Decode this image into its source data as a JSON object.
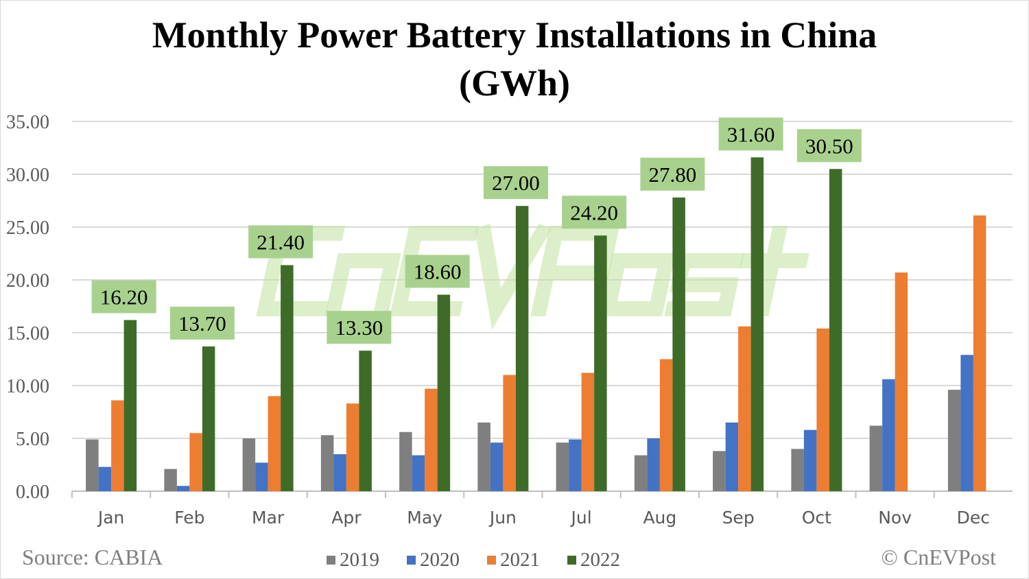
{
  "chart_data": {
    "type": "bar",
    "title": "Monthly Power Battery Installations in China",
    "subtitle": "(GWh)",
    "categories": [
      "Jan",
      "Feb",
      "Mar",
      "Apr",
      "May",
      "Jun",
      "Jul",
      "Aug",
      "Sep",
      "Oct",
      "Nov",
      "Dec"
    ],
    "series": [
      {
        "name": "2019",
        "color": "#7f7f7f",
        "values": [
          4.9,
          2.1,
          5.0,
          5.3,
          5.6,
          6.5,
          4.6,
          3.4,
          3.8,
          4.0,
          6.2,
          9.6
        ]
      },
      {
        "name": "2020",
        "color": "#4472c4",
        "values": [
          2.3,
          0.5,
          2.7,
          3.5,
          3.4,
          4.6,
          4.9,
          5.0,
          6.5,
          5.8,
          10.6,
          12.9
        ]
      },
      {
        "name": "2021",
        "color": "#ed7d31",
        "values": [
          8.6,
          5.5,
          9.0,
          8.3,
          9.7,
          11.0,
          11.2,
          12.5,
          15.6,
          15.4,
          20.7,
          26.1
        ]
      },
      {
        "name": "2022",
        "color": "#3f6b28",
        "values": [
          16.2,
          13.7,
          21.4,
          13.3,
          18.6,
          27.0,
          24.2,
          27.8,
          31.6,
          30.5,
          null,
          null
        ]
      }
    ],
    "data_labels": [
      "16.20",
      "13.70",
      "21.40",
      "13.30",
      "18.60",
      "27.00",
      "24.20",
      "27.80",
      "31.60",
      "30.50"
    ],
    "data_label_bg": "#a9d18e",
    "yticks": [
      "0.00",
      "5.00",
      "10.00",
      "15.00",
      "20.00",
      "25.00",
      "30.00",
      "35.00"
    ],
    "ylim": [
      0,
      35
    ],
    "grid": true,
    "legend": "bottom",
    "xlabel": "",
    "ylabel": ""
  },
  "source": "Source: CABIA",
  "copyright": "© CnEVPost",
  "watermark": "CnEVPost"
}
